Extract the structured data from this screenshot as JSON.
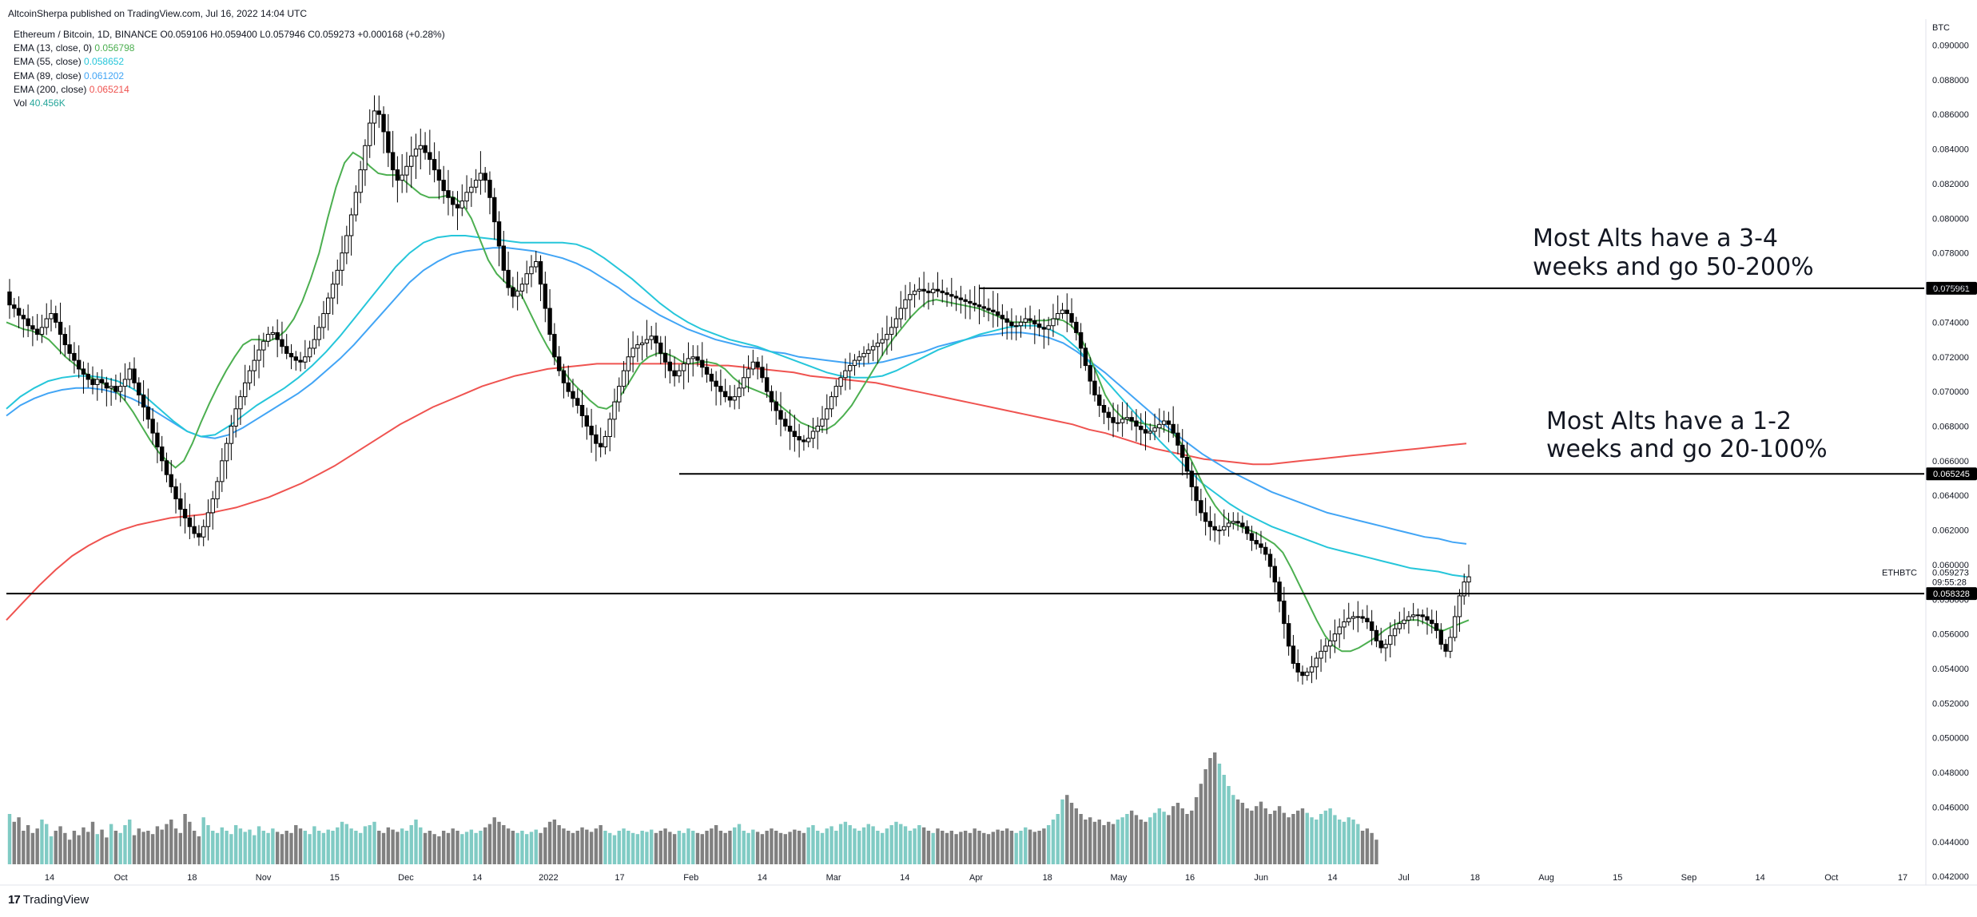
{
  "header": {
    "published": "AltcoinSherpa published on TradingView.com, Jul 16, 2022 14:04 UTC"
  },
  "legend": {
    "symbol_line": "Ethereum / Bitcoin, 1D, BINANCE  O0.059106 H0.059400 L0.057946 C0.059273 +0.000168 (+0.28%)",
    "indicators": [
      {
        "label": "EMA (13, close, 0)",
        "value": "0.056798",
        "color": "#4caf50"
      },
      {
        "label": "EMA (55, close)",
        "value": "0.058652",
        "color": "#26c6da"
      },
      {
        "label": "EMA (89, close)",
        "value": "0.061202",
        "color": "#42a5f5"
      },
      {
        "label": "EMA (200, close)",
        "value": "0.065214",
        "color": "#ef5350"
      },
      {
        "label": "Vol",
        "value": "40.456K",
        "color": "#26a69a"
      }
    ]
  },
  "footer": {
    "logo": "17",
    "brand": "TradingView"
  },
  "chart_data": {
    "type": "candlestick",
    "symbol": "ETHBTC",
    "axis_unit": "BTC",
    "ylim": [
      0.0415,
      0.0915
    ],
    "y_ticks": [
      "0.042000",
      "0.044000",
      "0.046000",
      "0.048000",
      "0.050000",
      "0.052000",
      "0.054000",
      "0.056000",
      "0.058000",
      "0.060000",
      "0.062000",
      "0.064000",
      "0.066000",
      "0.068000",
      "0.070000",
      "0.072000",
      "0.074000",
      "0.076000",
      "0.078000",
      "0.080000",
      "0.082000",
      "0.084000",
      "0.086000",
      "0.088000",
      "0.090000"
    ],
    "x_ticks": [
      "14",
      "Oct",
      "18",
      "Nov",
      "15",
      "Dec",
      "14",
      "2022",
      "17",
      "Feb",
      "14",
      "Mar",
      "14",
      "Apr",
      "18",
      "May",
      "16",
      "Jun",
      "14",
      "Jul",
      "18",
      "Aug",
      "15",
      "Sep",
      "14",
      "Oct",
      "17"
    ],
    "key_prices": [
      {
        "label": "0.075961",
        "value": 0.075961
      },
      {
        "label": "0.065245",
        "value": 0.065245
      },
      {
        "label": "0.058328",
        "value": 0.058328
      }
    ],
    "last_price": {
      "symbol": "ETHBTC",
      "price": "0.059273",
      "countdown": "09:55:28",
      "value": 0.059273
    },
    "annotations": [
      {
        "lines": [
          "Most Alts have a 3-4",
          "weeks and go 50-200%"
        ]
      },
      {
        "lines": [
          "Most Alts have a 1-2",
          "weeks and go 20-100%"
        ]
      }
    ],
    "closes": [
      0.075,
      0.0748,
      0.0744,
      0.0742,
      0.0738,
      0.0736,
      0.0733,
      0.0737,
      0.0742,
      0.0745,
      0.074,
      0.0733,
      0.0727,
      0.0722,
      0.0718,
      0.0713,
      0.071,
      0.0707,
      0.0704,
      0.0707,
      0.0705,
      0.0702,
      0.0703,
      0.07,
      0.0703,
      0.0707,
      0.0713,
      0.0705,
      0.0698,
      0.0691,
      0.0684,
      0.0676,
      0.0668,
      0.066,
      0.0652,
      0.0645,
      0.0638,
      0.0632,
      0.0627,
      0.0622,
      0.0618,
      0.0616,
      0.0622,
      0.063,
      0.0638,
      0.0648,
      0.066,
      0.067,
      0.068,
      0.069,
      0.0697,
      0.0705,
      0.0712,
      0.0718,
      0.0724,
      0.0729,
      0.0733,
      0.0734,
      0.073,
      0.0726,
      0.0722,
      0.072,
      0.0718,
      0.0717,
      0.072,
      0.0725,
      0.073,
      0.0737,
      0.0745,
      0.0754,
      0.0762,
      0.077,
      0.078,
      0.079,
      0.0802,
      0.0815,
      0.0828,
      0.0842,
      0.0855,
      0.0862,
      0.086,
      0.085,
      0.0838,
      0.0828,
      0.0822,
      0.0825,
      0.083,
      0.0836,
      0.084,
      0.0842,
      0.0838,
      0.0834,
      0.0828,
      0.0822,
      0.0816,
      0.0812,
      0.0808,
      0.0806,
      0.081,
      0.0815,
      0.0818,
      0.0822,
      0.0826,
      0.0822,
      0.0812,
      0.0798,
      0.0784,
      0.077,
      0.076,
      0.0755,
      0.0758,
      0.0762,
      0.0768,
      0.0772,
      0.0775,
      0.0762,
      0.0748,
      0.0733,
      0.072,
      0.0712,
      0.0705,
      0.07,
      0.0696,
      0.0692,
      0.0686,
      0.068,
      0.0675,
      0.067,
      0.0668,
      0.0674,
      0.0684,
      0.0694,
      0.0703,
      0.0712,
      0.072,
      0.0725,
      0.0727,
      0.0728,
      0.073,
      0.0732,
      0.0728,
      0.0722,
      0.0717,
      0.0712,
      0.0709,
      0.0712,
      0.0716,
      0.0719,
      0.072,
      0.0718,
      0.0714,
      0.071,
      0.0706,
      0.0703,
      0.07,
      0.0697,
      0.0695,
      0.0697,
      0.0702,
      0.0708,
      0.0713,
      0.0717,
      0.0714,
      0.0708,
      0.07,
      0.0694,
      0.0689,
      0.0684,
      0.068,
      0.0677,
      0.0674,
      0.0672,
      0.0671,
      0.0673,
      0.0677,
      0.068,
      0.0684,
      0.069,
      0.0697,
      0.0703,
      0.0708,
      0.0712,
      0.0715,
      0.0718,
      0.072,
      0.0722,
      0.0724,
      0.0726,
      0.0728,
      0.073,
      0.0733,
      0.0737,
      0.0742,
      0.0748,
      0.0753,
      0.0756,
      0.0758,
      0.0759,
      0.0758,
      0.0757,
      0.0759,
      0.0758,
      0.0757,
      0.0756,
      0.0755,
      0.0754,
      0.0753,
      0.0752,
      0.0751,
      0.075,
      0.0749,
      0.0748,
      0.0747,
      0.0746,
      0.0744,
      0.0742,
      0.074,
      0.0738,
      0.0738,
      0.074,
      0.0742,
      0.0741,
      0.0739,
      0.0737,
      0.0736,
      0.0738,
      0.0742,
      0.0745,
      0.0747,
      0.0745,
      0.074,
      0.0734,
      0.0725,
      0.0715,
      0.0706,
      0.0698,
      0.0692,
      0.0688,
      0.0685,
      0.0682,
      0.0682,
      0.0684,
      0.0685,
      0.0683,
      0.068,
      0.0678,
      0.0676,
      0.0677,
      0.0679,
      0.0681,
      0.0683,
      0.0681,
      0.0676,
      0.0669,
      0.0662,
      0.0654,
      0.0645,
      0.0637,
      0.063,
      0.0625,
      0.0622,
      0.062,
      0.062,
      0.0622,
      0.0624,
      0.0625,
      0.0624,
      0.0622,
      0.0618,
      0.0614,
      0.0612,
      0.061,
      0.0606,
      0.0599,
      0.059,
      0.0579,
      0.0566,
      0.0553,
      0.0543,
      0.0538,
      0.0536,
      0.0538,
      0.0541,
      0.0546,
      0.055,
      0.0553,
      0.0556,
      0.056,
      0.0564,
      0.0567,
      0.0569,
      0.057,
      0.057,
      0.0569,
      0.0567,
      0.0562,
      0.0556,
      0.0552,
      0.0554,
      0.0559,
      0.0563,
      0.0566,
      0.0568,
      0.057,
      0.0571,
      0.0571,
      0.057,
      0.0568,
      0.0566,
      0.0562,
      0.0554,
      0.055,
      0.0558,
      0.057,
      0.0582,
      0.059,
      0.0593
    ],
    "ema13_path": [
      0.074,
      0.0738,
      0.0736,
      0.0735,
      0.0733,
      0.073,
      0.0725,
      0.072,
      0.0716,
      0.0712,
      0.0708,
      0.0706,
      0.0703,
      0.07,
      0.0695,
      0.0688,
      0.068,
      0.0672,
      0.0665,
      0.066,
      0.0656,
      0.066,
      0.067,
      0.0682,
      0.0693,
      0.0703,
      0.0712,
      0.072,
      0.0727,
      0.073,
      0.073,
      0.0729,
      0.0731,
      0.0735,
      0.0742,
      0.0752,
      0.0765,
      0.078,
      0.08,
      0.0818,
      0.0832,
      0.0838,
      0.0835,
      0.083,
      0.0826,
      0.0825,
      0.0825,
      0.0822,
      0.0818,
      0.0814,
      0.0812,
      0.0812,
      0.0813,
      0.0812,
      0.0808,
      0.08,
      0.0788,
      0.0776,
      0.0768,
      0.0763,
      0.076,
      0.0755,
      0.0745,
      0.0735,
      0.0726,
      0.0718,
      0.0711,
      0.0705,
      0.07,
      0.0695,
      0.0691,
      0.069,
      0.0693,
      0.07,
      0.0708,
      0.0716,
      0.072,
      0.0722,
      0.0722,
      0.072,
      0.0717,
      0.0716,
      0.0717,
      0.0717,
      0.0716,
      0.0713,
      0.0708,
      0.0704,
      0.0702,
      0.07,
      0.0698,
      0.0694,
      0.069,
      0.0686,
      0.0682,
      0.068,
      0.0678,
      0.0678,
      0.0681,
      0.0686,
      0.0692,
      0.07,
      0.0708,
      0.0716,
      0.0724,
      0.0731,
      0.0737,
      0.0743,
      0.0748,
      0.0752,
      0.0753,
      0.0752,
      0.0751,
      0.075,
      0.0749,
      0.0748,
      0.0746,
      0.0744,
      0.0742,
      0.074,
      0.074,
      0.074,
      0.0741,
      0.0741,
      0.0742,
      0.0741,
      0.0738,
      0.0732,
      0.0722,
      0.071,
      0.0698,
      0.069,
      0.0685,
      0.0683,
      0.0682,
      0.0681,
      0.068,
      0.0678,
      0.0676,
      0.067,
      0.0662,
      0.0652,
      0.0642,
      0.0634,
      0.0628,
      0.0624,
      0.0622,
      0.062,
      0.0618,
      0.0615,
      0.0612,
      0.0607,
      0.0598,
      0.0588,
      0.0578,
      0.0568,
      0.0559,
      0.0553,
      0.055,
      0.055,
      0.0552,
      0.0555,
      0.0558,
      0.0562,
      0.0565,
      0.0567,
      0.0568,
      0.0568,
      0.0566,
      0.0563,
      0.0562,
      0.0564,
      0.0566,
      0.0568
    ],
    "ema55_path": [
      0.069,
      0.0697,
      0.0702,
      0.0706,
      0.0708,
      0.0709,
      0.0709,
      0.0708,
      0.0706,
      0.0702,
      0.0697,
      0.069,
      0.0683,
      0.0677,
      0.0674,
      0.0675,
      0.068,
      0.0686,
      0.0692,
      0.0697,
      0.0702,
      0.0708,
      0.0715,
      0.0723,
      0.0732,
      0.0742,
      0.0752,
      0.0762,
      0.0772,
      0.078,
      0.0786,
      0.0789,
      0.079,
      0.079,
      0.0789,
      0.0788,
      0.0787,
      0.0786,
      0.0786,
      0.0786,
      0.0786,
      0.0785,
      0.0782,
      0.0777,
      0.0771,
      0.0765,
      0.0758,
      0.0751,
      0.0745,
      0.074,
      0.0736,
      0.0733,
      0.073,
      0.0728,
      0.0726,
      0.0723,
      0.072,
      0.0717,
      0.0714,
      0.0711,
      0.0709,
      0.0708,
      0.0708,
      0.0709,
      0.0712,
      0.0716,
      0.072,
      0.0724,
      0.0727,
      0.073,
      0.0733,
      0.0735,
      0.0737,
      0.0738,
      0.0738,
      0.0736,
      0.0732,
      0.0725,
      0.0716,
      0.0707,
      0.0698,
      0.0689,
      0.068,
      0.0671,
      0.0663,
      0.0655,
      0.0647,
      0.0641,
      0.0635,
      0.063,
      0.0626,
      0.0622,
      0.0619,
      0.0616,
      0.0613,
      0.061,
      0.0608,
      0.0606,
      0.0604,
      0.0602,
      0.06,
      0.0598,
      0.0597,
      0.0596,
      0.0594,
      0.0593
    ],
    "ema89_path": [
      0.0686,
      0.0692,
      0.0696,
      0.0699,
      0.0701,
      0.0702,
      0.0702,
      0.0701,
      0.0699,
      0.0696,
      0.0692,
      0.0687,
      0.0682,
      0.0677,
      0.0674,
      0.0673,
      0.0675,
      0.0679,
      0.0684,
      0.0689,
      0.0694,
      0.0699,
      0.0705,
      0.0712,
      0.0719,
      0.0727,
      0.0736,
      0.0745,
      0.0754,
      0.0763,
      0.077,
      0.0775,
      0.0779,
      0.0781,
      0.0782,
      0.0783,
      0.0783,
      0.0782,
      0.0781,
      0.0779,
      0.0777,
      0.0774,
      0.077,
      0.0765,
      0.076,
      0.0754,
      0.0749,
      0.0744,
      0.074,
      0.0736,
      0.0733,
      0.073,
      0.0728,
      0.0726,
      0.0725,
      0.0723,
      0.0722,
      0.072,
      0.0719,
      0.0718,
      0.0717,
      0.0716,
      0.0716,
      0.0717,
      0.0719,
      0.0721,
      0.0723,
      0.0726,
      0.0728,
      0.073,
      0.0732,
      0.0733,
      0.0734,
      0.0734,
      0.0733,
      0.0731,
      0.0728,
      0.0723,
      0.0717,
      0.0711,
      0.0704,
      0.0697,
      0.069,
      0.0683,
      0.0676,
      0.067,
      0.0664,
      0.0659,
      0.0654,
      0.065,
      0.0646,
      0.0642,
      0.0639,
      0.0636,
      0.0633,
      0.063,
      0.0628,
      0.0626,
      0.0624,
      0.0622,
      0.062,
      0.0618,
      0.0616,
      0.0615,
      0.0613,
      0.0612
    ],
    "ema200_path": [
      0.0568,
      0.0578,
      0.0588,
      0.0597,
      0.0605,
      0.0611,
      0.0616,
      0.062,
      0.0623,
      0.0625,
      0.0627,
      0.0628,
      0.0629,
      0.0631,
      0.0633,
      0.0636,
      0.0639,
      0.0643,
      0.0647,
      0.0652,
      0.0657,
      0.0663,
      0.0669,
      0.0675,
      0.0681,
      0.0686,
      0.0691,
      0.0695,
      0.0699,
      0.0703,
      0.0706,
      0.0709,
      0.0711,
      0.0713,
      0.0714,
      0.0715,
      0.0716,
      0.0716,
      0.0716,
      0.0716,
      0.0716,
      0.0716,
      0.0716,
      0.0715,
      0.0715,
      0.0714,
      0.0713,
      0.0712,
      0.0711,
      0.0709,
      0.0708,
      0.0707,
      0.0706,
      0.0705,
      0.0703,
      0.0701,
      0.0699,
      0.0697,
      0.0695,
      0.0693,
      0.0691,
      0.0689,
      0.0687,
      0.0685,
      0.0683,
      0.0681,
      0.0678,
      0.0676,
      0.0673,
      0.067,
      0.0667,
      0.0665,
      0.0663,
      0.0661,
      0.066,
      0.0659,
      0.0658,
      0.0658,
      0.0659,
      0.066,
      0.0661,
      0.0662,
      0.0663,
      0.0664,
      0.0665,
      0.0666,
      0.0667,
      0.0668,
      0.0669,
      0.067
    ],
    "volume_relative": [
      0.45,
      0.38,
      0.42,
      0.3,
      0.35,
      0.28,
      0.32,
      0.4,
      0.36,
      0.25,
      0.3,
      0.34,
      0.28,
      0.22,
      0.3,
      0.26,
      0.33,
      0.29,
      0.38,
      0.27,
      0.31,
      0.24,
      0.36,
      0.3,
      0.28,
      0.35,
      0.4,
      0.26,
      0.32,
      0.29,
      0.3,
      0.27,
      0.34,
      0.31,
      0.36,
      0.4,
      0.32,
      0.28,
      0.45,
      0.38,
      0.3,
      0.25,
      0.42,
      0.35,
      0.3,
      0.28,
      0.33,
      0.3,
      0.27,
      0.35,
      0.32,
      0.29,
      0.31,
      0.26,
      0.34,
      0.3,
      0.28,
      0.32,
      0.29,
      0.27,
      0.3,
      0.28,
      0.35,
      0.32,
      0.3,
      0.27,
      0.34,
      0.3,
      0.28,
      0.31,
      0.3,
      0.33,
      0.38,
      0.36,
      0.32,
      0.3,
      0.28,
      0.34,
      0.35,
      0.38,
      0.3,
      0.28,
      0.33,
      0.31,
      0.29,
      0.32,
      0.3,
      0.35,
      0.4,
      0.33,
      0.28,
      0.3,
      0.27,
      0.25,
      0.3,
      0.28,
      0.32,
      0.3,
      0.27,
      0.29,
      0.31,
      0.28,
      0.3,
      0.33,
      0.36,
      0.42,
      0.38,
      0.35,
      0.32,
      0.3,
      0.28,
      0.3,
      0.27,
      0.29,
      0.31,
      0.28,
      0.33,
      0.38,
      0.4,
      0.35,
      0.32,
      0.3,
      0.28,
      0.3,
      0.33,
      0.31,
      0.29,
      0.32,
      0.35,
      0.3,
      0.28,
      0.26,
      0.3,
      0.32,
      0.3,
      0.28,
      0.27,
      0.3,
      0.29,
      0.31,
      0.28,
      0.3,
      0.32,
      0.29,
      0.27,
      0.3,
      0.28,
      0.32,
      0.3,
      0.28,
      0.27,
      0.3,
      0.32,
      0.35,
      0.3,
      0.28,
      0.3,
      0.33,
      0.36,
      0.3,
      0.28,
      0.31,
      0.29,
      0.27,
      0.3,
      0.32,
      0.3,
      0.28,
      0.27,
      0.29,
      0.31,
      0.3,
      0.28,
      0.33,
      0.35,
      0.3,
      0.28,
      0.32,
      0.34,
      0.3,
      0.36,
      0.38,
      0.35,
      0.32,
      0.3,
      0.33,
      0.36,
      0.34,
      0.3,
      0.28,
      0.32,
      0.35,
      0.38,
      0.36,
      0.34,
      0.3,
      0.32,
      0.35,
      0.33,
      0.3,
      0.28,
      0.32,
      0.3,
      0.28,
      0.3,
      0.27,
      0.29,
      0.3,
      0.28,
      0.32,
      0.3,
      0.28,
      0.27,
      0.29,
      0.31,
      0.3,
      0.32,
      0.3,
      0.28,
      0.3,
      0.33,
      0.31,
      0.29,
      0.3,
      0.32,
      0.35,
      0.4,
      0.45,
      0.58,
      0.62,
      0.55,
      0.5,
      0.45,
      0.4,
      0.42,
      0.38,
      0.4,
      0.35,
      0.38,
      0.36,
      0.4,
      0.42,
      0.45,
      0.48,
      0.44,
      0.4,
      0.38,
      0.42,
      0.46,
      0.5,
      0.47,
      0.44,
      0.52,
      0.55,
      0.5,
      0.45,
      0.48,
      0.6,
      0.72,
      0.85,
      0.95,
      1.0,
      0.9,
      0.8,
      0.7,
      0.62,
      0.58,
      0.55,
      0.5,
      0.48,
      0.52,
      0.56,
      0.5,
      0.45,
      0.48,
      0.52,
      0.46,
      0.42,
      0.45,
      0.48,
      0.5,
      0.46,
      0.42,
      0.4,
      0.45,
      0.48,
      0.5,
      0.44,
      0.4,
      0.38,
      0.42,
      0.4,
      0.36,
      0.3,
      0.32,
      0.28,
      0.22
    ]
  }
}
